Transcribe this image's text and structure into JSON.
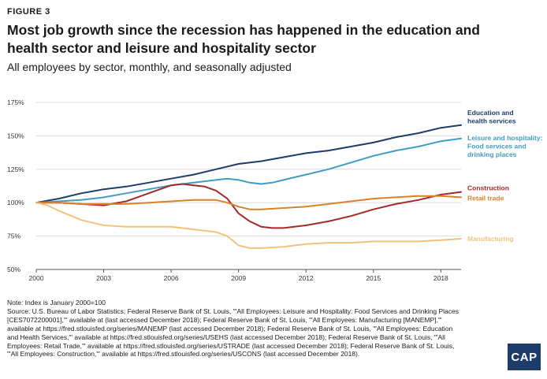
{
  "figure_label": "FIGURE 3",
  "title": "Most job growth since the recession has happened in the education and health sector and leisure and hospitality sector",
  "subtitle": "All employees by sector, monthly, and  seasonally adjusted",
  "note_lines": [
    "Note: Index is January 2000=100",
    "Source: U.S. Bureau of Labor Statistics; Federal Reserve Bank of St. Louis, \"'All Employees: Leisure and Hospitality: Food Services and Drinking Places",
    "[CES7072200001],'\" available at  (last accessed December 2018); Federal Reserve Bank of St. Louis, \"'All Employees: Manufacturing [MANEMP],'\"",
    "available at https://fred.stlouisfed.org/series/MANEMP (last accessed December 2018); Federal Reserve Bank of St. Louis, \"'All Employees: Education",
    "and Health Services,'\" available at https://fred.stlouisfed.org/series/USEHS (last accessed December 2018); Federal Reserve Bank of St. Louis, \"'All",
    "Employees: Retail Trade,'\" available at https://fred.stlouisfed.org/series/USTRADE (last accessed December 2018); Federal Reserve Bank of St. Louis,",
    "\"'All Employees: Construction,'\" available at https://fred.stlouisfed.org/series/USCONS (last accessed December 2018)."
  ],
  "logo_text": "CAP",
  "chart_data": {
    "type": "line",
    "title": "",
    "xlabel": "",
    "ylabel": "",
    "xlim": [
      2000,
      2018.9
    ],
    "ylim": [
      50,
      175
    ],
    "yticks": [
      50,
      75,
      100,
      125,
      150,
      175
    ],
    "ytick_labels": [
      "50%",
      "75%",
      "100%",
      "125%",
      "150%",
      "175%"
    ],
    "xticks": [
      2000,
      2003,
      2006,
      2009,
      2012,
      2015,
      2018
    ],
    "xtick_labels": [
      "2000",
      "2003",
      "2006",
      "2009",
      "2012",
      "2015",
      "2018"
    ],
    "grid": true,
    "series": [
      {
        "name": "Education and health services",
        "label_lines": [
          "Education and",
          "health services"
        ],
        "color": "#1d3c6a",
        "x": [
          2000,
          2001,
          2002,
          2003,
          2004,
          2005,
          2006,
          2007,
          2008,
          2009,
          2010,
          2011,
          2012,
          2013,
          2014,
          2015,
          2016,
          2017,
          2018,
          2018.9
        ],
        "y": [
          100,
          103,
          107,
          110,
          112,
          115,
          118,
          121,
          125,
          129,
          131,
          134,
          137,
          139,
          142,
          145,
          149,
          152,
          156,
          158
        ]
      },
      {
        "name": "Leisure and hospitality: Food services and drinking places",
        "label_lines": [
          "Leisure and hospitality:",
          "Food services and",
          "drinking places"
        ],
        "color": "#3f9cc3",
        "x": [
          2000,
          2001,
          2002,
          2003,
          2004,
          2005,
          2006,
          2007,
          2007.5,
          2008,
          2008.5,
          2009,
          2009.5,
          2010,
          2010.5,
          2011,
          2012,
          2013,
          2014,
          2015,
          2016,
          2017,
          2018,
          2018.9
        ],
        "y": [
          100,
          101,
          102,
          104,
          107,
          110,
          113,
          115,
          116,
          117,
          118,
          117,
          115,
          114,
          115,
          117,
          121,
          125,
          130,
          135,
          139,
          142,
          146,
          148
        ]
      },
      {
        "name": "Construction",
        "label_lines": [
          "Construction"
        ],
        "color": "#a3292b",
        "x": [
          2000,
          2001,
          2002,
          2003,
          2004,
          2005,
          2006,
          2006.5,
          2007,
          2007.5,
          2008,
          2008.5,
          2009,
          2009.5,
          2010,
          2010.5,
          2011,
          2012,
          2013,
          2014,
          2015,
          2016,
          2017,
          2018,
          2018.9
        ],
        "y": [
          100,
          100,
          99,
          98,
          101,
          107,
          113,
          114,
          113,
          112,
          109,
          103,
          92,
          86,
          82,
          81,
          81,
          83,
          86,
          90,
          95,
          99,
          102,
          106,
          108
        ]
      },
      {
        "name": "Retail trade",
        "label_lines": [
          "Retail trade"
        ],
        "color": "#d9822b",
        "x": [
          2000,
          2001,
          2002,
          2003,
          2004,
          2005,
          2006,
          2007,
          2008,
          2008.5,
          2009,
          2009.5,
          2010,
          2011,
          2012,
          2013,
          2014,
          2015,
          2016,
          2017,
          2018,
          2018.9
        ],
        "y": [
          100,
          100,
          99,
          99,
          99,
          100,
          101,
          102,
          102,
          100,
          97,
          95,
          95,
          96,
          97,
          99,
          101,
          103,
          104,
          105,
          105,
          104
        ]
      },
      {
        "name": "Manufacturing",
        "label_lines": [
          "Manufacturing"
        ],
        "color": "#f2c27c",
        "x": [
          2000,
          2000.5,
          2001,
          2002,
          2003,
          2004,
          2005,
          2006,
          2007,
          2008,
          2008.5,
          2009,
          2009.5,
          2010,
          2011,
          2012,
          2013,
          2014,
          2015,
          2016,
          2017,
          2018,
          2018.9
        ],
        "y": [
          100,
          98,
          94,
          87,
          83,
          82,
          82,
          82,
          80,
          78,
          75,
          68,
          66,
          66,
          67,
          69,
          70,
          70,
          71,
          71,
          71,
          72,
          73
        ]
      }
    ]
  }
}
